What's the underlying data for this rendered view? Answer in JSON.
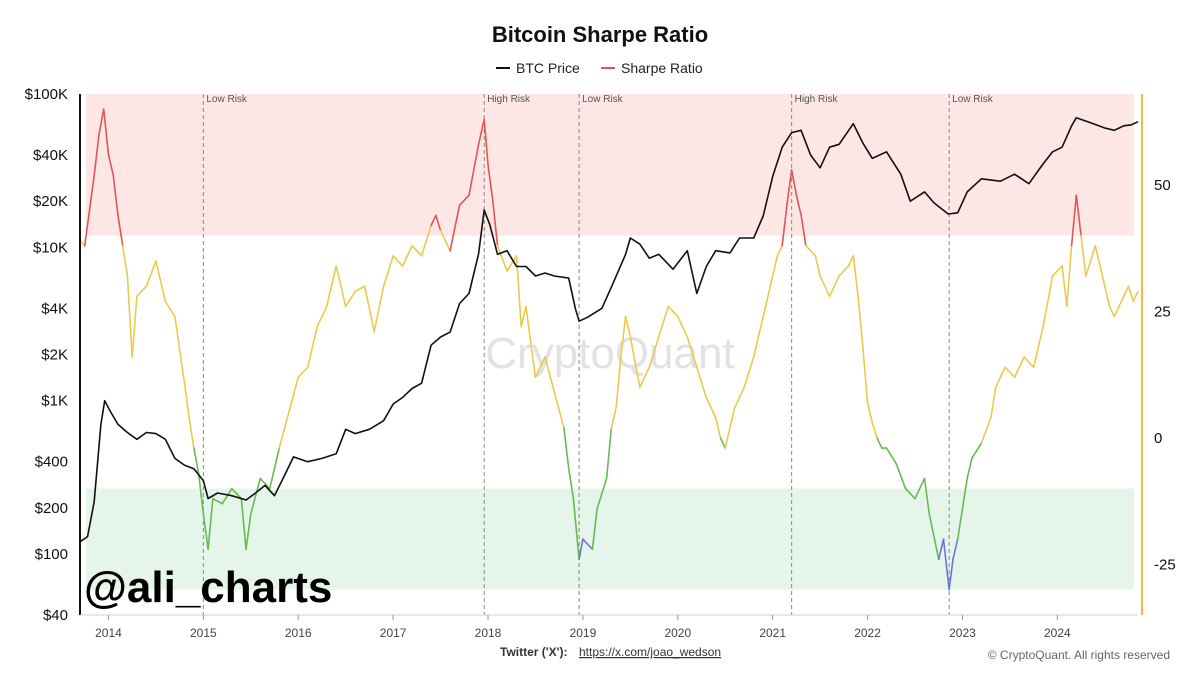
{
  "colors": {
    "btc": "#111111",
    "sharpe_high": "#e05656",
    "sharpe_mid": "#ecc94b",
    "sharpe_low": "#66bb55",
    "sharpe_vlow": "#6f73d6",
    "high_band": "#fce7e4",
    "low_band": "#e6f5e9",
    "right_axis": "#f5b642",
    "left_axis": "#111111"
  },
  "chart_data": {
    "type": "line",
    "title": "Bitcoin Sharpe Ratio",
    "legend": [
      {
        "label": "BTC Price",
        "color": "#111111"
      },
      {
        "label": "Sharpe Ratio",
        "color": "#e05656"
      }
    ],
    "left_axis": {
      "scale": "log",
      "range": [
        40,
        100000
      ],
      "ticks": [
        {
          "value": 100000,
          "label": "$100K"
        },
        {
          "value": 40000,
          "label": "$40K"
        },
        {
          "value": 20000,
          "label": "$20K"
        },
        {
          "value": 10000,
          "label": "$10K"
        },
        {
          "value": 4000,
          "label": "$4K"
        },
        {
          "value": 2000,
          "label": "$2K"
        },
        {
          "value": 1000,
          "label": "$1K"
        },
        {
          "value": 400,
          "label": "$400"
        },
        {
          "value": 200,
          "label": "$200"
        },
        {
          "value": 100,
          "label": "$100"
        },
        {
          "value": 40,
          "label": "$40"
        }
      ]
    },
    "right_axis": {
      "range": [
        -35,
        68
      ],
      "ticks": [
        {
          "value": 50,
          "label": "50"
        },
        {
          "value": 25,
          "label": "25"
        },
        {
          "value": 0,
          "label": "0"
        },
        {
          "value": -25,
          "label": "-25"
        }
      ]
    },
    "x_axis": {
      "range": [
        2013.7,
        2024.85
      ],
      "ticks": [
        {
          "value": 2014,
          "label": "2014"
        },
        {
          "value": 2015,
          "label": "2015"
        },
        {
          "value": 2016,
          "label": "2016"
        },
        {
          "value": 2017,
          "label": "2017"
        },
        {
          "value": 2018,
          "label": "2018"
        },
        {
          "value": 2019,
          "label": "2019"
        },
        {
          "value": 2020,
          "label": "2020"
        },
        {
          "value": 2021,
          "label": "2021"
        },
        {
          "value": 2022,
          "label": "2022"
        },
        {
          "value": 2023,
          "label": "2023"
        },
        {
          "value": 2024,
          "label": "2024"
        }
      ]
    },
    "bands": [
      {
        "name": "high-risk-band",
        "from": 40,
        "to": 68
      },
      {
        "name": "low-risk-band",
        "from": -30,
        "to": -10
      }
    ],
    "thresholds": {
      "high": 40,
      "mid_low": 0,
      "very_low": -20
    },
    "annotations": [
      {
        "x": 2015.0,
        "label": "Low Risk"
      },
      {
        "x": 2017.96,
        "label": "High Risk"
      },
      {
        "x": 2018.96,
        "label": "Low Risk"
      },
      {
        "x": 2021.2,
        "label": "High Risk"
      },
      {
        "x": 2022.86,
        "label": "Low Risk"
      }
    ],
    "series": [
      {
        "name": "BTC Price",
        "axis": "left",
        "points": [
          [
            2013.7,
            120
          ],
          [
            2013.78,
            130
          ],
          [
            2013.85,
            220
          ],
          [
            2013.92,
            700
          ],
          [
            2013.96,
            1000
          ],
          [
            2014.02,
            850
          ],
          [
            2014.1,
            700
          ],
          [
            2014.2,
            620
          ],
          [
            2014.3,
            560
          ],
          [
            2014.4,
            620
          ],
          [
            2014.5,
            610
          ],
          [
            2014.6,
            560
          ],
          [
            2014.7,
            420
          ],
          [
            2014.8,
            380
          ],
          [
            2014.9,
            360
          ],
          [
            2015.0,
            300
          ],
          [
            2015.05,
            230
          ],
          [
            2015.15,
            250
          ],
          [
            2015.3,
            240
          ],
          [
            2015.45,
            225
          ],
          [
            2015.55,
            250
          ],
          [
            2015.65,
            280
          ],
          [
            2015.75,
            240
          ],
          [
            2015.85,
            320
          ],
          [
            2015.95,
            430
          ],
          [
            2016.1,
            400
          ],
          [
            2016.25,
            420
          ],
          [
            2016.4,
            450
          ],
          [
            2016.5,
            650
          ],
          [
            2016.6,
            610
          ],
          [
            2016.75,
            650
          ],
          [
            2016.9,
            740
          ],
          [
            2017.0,
            950
          ],
          [
            2017.1,
            1050
          ],
          [
            2017.2,
            1200
          ],
          [
            2017.3,
            1300
          ],
          [
            2017.4,
            2300
          ],
          [
            2017.5,
            2600
          ],
          [
            2017.6,
            2800
          ],
          [
            2017.7,
            4300
          ],
          [
            2017.8,
            5000
          ],
          [
            2017.9,
            9000
          ],
          [
            2017.96,
            17500
          ],
          [
            2018.02,
            14000
          ],
          [
            2018.1,
            9000
          ],
          [
            2018.2,
            9500
          ],
          [
            2018.3,
            7500
          ],
          [
            2018.4,
            7500
          ],
          [
            2018.5,
            6500
          ],
          [
            2018.6,
            6800
          ],
          [
            2018.7,
            6500
          ],
          [
            2018.85,
            6300
          ],
          [
            2018.92,
            4000
          ],
          [
            2018.96,
            3300
          ],
          [
            2019.05,
            3500
          ],
          [
            2019.2,
            4000
          ],
          [
            2019.3,
            5500
          ],
          [
            2019.45,
            9000
          ],
          [
            2019.5,
            11500
          ],
          [
            2019.6,
            10500
          ],
          [
            2019.7,
            8500
          ],
          [
            2019.8,
            9000
          ],
          [
            2019.95,
            7200
          ],
          [
            2020.1,
            9500
          ],
          [
            2020.2,
            5000
          ],
          [
            2020.3,
            7500
          ],
          [
            2020.4,
            9500
          ],
          [
            2020.55,
            9200
          ],
          [
            2020.65,
            11500
          ],
          [
            2020.8,
            11500
          ],
          [
            2020.9,
            16000
          ],
          [
            2021.0,
            29000
          ],
          [
            2021.1,
            45000
          ],
          [
            2021.2,
            56000
          ],
          [
            2021.3,
            58000
          ],
          [
            2021.4,
            40000
          ],
          [
            2021.5,
            33000
          ],
          [
            2021.6,
            45000
          ],
          [
            2021.7,
            47000
          ],
          [
            2021.85,
            64000
          ],
          [
            2021.95,
            48000
          ],
          [
            2022.05,
            38000
          ],
          [
            2022.2,
            42000
          ],
          [
            2022.35,
            30000
          ],
          [
            2022.45,
            20000
          ],
          [
            2022.6,
            23000
          ],
          [
            2022.7,
            19500
          ],
          [
            2022.85,
            16500
          ],
          [
            2022.95,
            16800
          ],
          [
            2023.05,
            23000
          ],
          [
            2023.2,
            28000
          ],
          [
            2023.4,
            27000
          ],
          [
            2023.55,
            30000
          ],
          [
            2023.7,
            26000
          ],
          [
            2023.85,
            35000
          ],
          [
            2023.95,
            42000
          ],
          [
            2024.05,
            45000
          ],
          [
            2024.15,
            62000
          ],
          [
            2024.2,
            70000
          ],
          [
            2024.35,
            65000
          ],
          [
            2024.5,
            60000
          ],
          [
            2024.6,
            58000
          ],
          [
            2024.7,
            62000
          ],
          [
            2024.78,
            63000
          ],
          [
            2024.85,
            66000
          ]
        ]
      },
      {
        "name": "Sharpe Ratio",
        "axis": "right",
        "points": [
          [
            2013.7,
            39
          ],
          [
            2013.75,
            38
          ],
          [
            2013.8,
            45
          ],
          [
            2013.85,
            52
          ],
          [
            2013.9,
            60
          ],
          [
            2013.95,
            65
          ],
          [
            2014.0,
            56
          ],
          [
            2014.05,
            52
          ],
          [
            2014.1,
            44
          ],
          [
            2014.15,
            38
          ],
          [
            2014.2,
            32
          ],
          [
            2014.25,
            16
          ],
          [
            2014.3,
            28
          ],
          [
            2014.4,
            30
          ],
          [
            2014.5,
            35
          ],
          [
            2014.6,
            27
          ],
          [
            2014.7,
            24
          ],
          [
            2014.8,
            11
          ],
          [
            2014.85,
            4
          ],
          [
            2014.9,
            -2
          ],
          [
            2014.95,
            -7
          ],
          [
            2015.0,
            -15
          ],
          [
            2015.05,
            -22
          ],
          [
            2015.1,
            -12
          ],
          [
            2015.2,
            -13
          ],
          [
            2015.3,
            -10
          ],
          [
            2015.4,
            -12
          ],
          [
            2015.45,
            -22
          ],
          [
            2015.5,
            -15
          ],
          [
            2015.6,
            -8
          ],
          [
            2015.7,
            -10
          ],
          [
            2015.8,
            -2
          ],
          [
            2015.9,
            5
          ],
          [
            2016.0,
            12
          ],
          [
            2016.1,
            14
          ],
          [
            2016.2,
            22
          ],
          [
            2016.3,
            26
          ],
          [
            2016.4,
            34
          ],
          [
            2016.5,
            26
          ],
          [
            2016.6,
            29
          ],
          [
            2016.7,
            30
          ],
          [
            2016.8,
            21
          ],
          [
            2016.9,
            30
          ],
          [
            2017.0,
            36
          ],
          [
            2017.1,
            34
          ],
          [
            2017.2,
            38
          ],
          [
            2017.3,
            36
          ],
          [
            2017.4,
            42
          ],
          [
            2017.45,
            44
          ],
          [
            2017.5,
            41
          ],
          [
            2017.6,
            37
          ],
          [
            2017.7,
            46
          ],
          [
            2017.8,
            48
          ],
          [
            2017.85,
            53
          ],
          [
            2017.9,
            58
          ],
          [
            2017.96,
            63
          ],
          [
            2018.0,
            54
          ],
          [
            2018.05,
            47
          ],
          [
            2018.1,
            38
          ],
          [
            2018.2,
            33
          ],
          [
            2018.3,
            36
          ],
          [
            2018.35,
            22
          ],
          [
            2018.4,
            26
          ],
          [
            2018.5,
            12
          ],
          [
            2018.6,
            16
          ],
          [
            2018.7,
            9
          ],
          [
            2018.8,
            2
          ],
          [
            2018.85,
            -6
          ],
          [
            2018.9,
            -12
          ],
          [
            2018.96,
            -24
          ],
          [
            2019.0,
            -20
          ],
          [
            2019.1,
            -22
          ],
          [
            2019.15,
            -14
          ],
          [
            2019.25,
            -8
          ],
          [
            2019.3,
            2
          ],
          [
            2019.35,
            6
          ],
          [
            2019.4,
            16
          ],
          [
            2019.45,
            24
          ],
          [
            2019.5,
            20
          ],
          [
            2019.6,
            10
          ],
          [
            2019.7,
            14
          ],
          [
            2019.8,
            20
          ],
          [
            2019.9,
            26
          ],
          [
            2020.0,
            24
          ],
          [
            2020.1,
            20
          ],
          [
            2020.2,
            14
          ],
          [
            2020.3,
            8
          ],
          [
            2020.4,
            4
          ],
          [
            2020.45,
            0
          ],
          [
            2020.5,
            -2
          ],
          [
            2020.6,
            6
          ],
          [
            2020.7,
            10
          ],
          [
            2020.8,
            16
          ],
          [
            2020.9,
            24
          ],
          [
            2021.0,
            32
          ],
          [
            2021.05,
            36
          ],
          [
            2021.1,
            38
          ],
          [
            2021.15,
            46
          ],
          [
            2021.2,
            53
          ],
          [
            2021.25,
            48
          ],
          [
            2021.3,
            44
          ],
          [
            2021.35,
            38
          ],
          [
            2021.45,
            36
          ],
          [
            2021.5,
            32
          ],
          [
            2021.6,
            28
          ],
          [
            2021.7,
            32
          ],
          [
            2021.8,
            34
          ],
          [
            2021.85,
            36
          ],
          [
            2021.9,
            28
          ],
          [
            2021.95,
            18
          ],
          [
            2022.0,
            7
          ],
          [
            2022.05,
            3
          ],
          [
            2022.1,
            0
          ],
          [
            2022.15,
            -2
          ],
          [
            2022.2,
            -2
          ],
          [
            2022.3,
            -5
          ],
          [
            2022.4,
            -10
          ],
          [
            2022.5,
            -12
          ],
          [
            2022.6,
            -8
          ],
          [
            2022.65,
            -15
          ],
          [
            2022.75,
            -24
          ],
          [
            2022.8,
            -20
          ],
          [
            2022.86,
            -30
          ],
          [
            2022.9,
            -24
          ],
          [
            2022.95,
            -20
          ],
          [
            2023.0,
            -14
          ],
          [
            2023.05,
            -8
          ],
          [
            2023.1,
            -4
          ],
          [
            2023.2,
            -1
          ],
          [
            2023.3,
            4
          ],
          [
            2023.35,
            10
          ],
          [
            2023.45,
            14
          ],
          [
            2023.55,
            12
          ],
          [
            2023.65,
            16
          ],
          [
            2023.75,
            14
          ],
          [
            2023.85,
            22
          ],
          [
            2023.95,
            32
          ],
          [
            2024.05,
            34
          ],
          [
            2024.1,
            26
          ],
          [
            2024.15,
            38
          ],
          [
            2024.2,
            48
          ],
          [
            2024.25,
            40
          ],
          [
            2024.3,
            32
          ],
          [
            2024.4,
            38
          ],
          [
            2024.5,
            30
          ],
          [
            2024.55,
            26
          ],
          [
            2024.6,
            24
          ],
          [
            2024.7,
            28
          ],
          [
            2024.75,
            30
          ],
          [
            2024.8,
            27
          ],
          [
            2024.85,
            29
          ]
        ]
      }
    ]
  },
  "watermark": "CryptoQuant",
  "handle": "@ali_charts",
  "footer": {
    "twitter_label": "Twitter ('X'):",
    "twitter_url": "https://x.com/joao_wedson",
    "copyright": "© CryptoQuant. All rights reserved"
  }
}
